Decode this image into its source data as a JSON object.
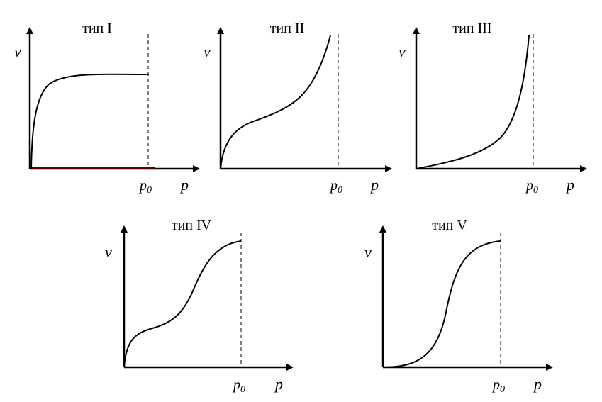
{
  "panels": [
    {
      "title": "тип I",
      "y_label": "v",
      "x_label": "p",
      "marker_label": "p",
      "marker_subscript": "0"
    },
    {
      "title": "тип II",
      "y_label": "v",
      "x_label": "p",
      "marker_label": "p",
      "marker_subscript": "0"
    },
    {
      "title": "тип III",
      "y_label": "v",
      "x_label": "p",
      "marker_label": "p",
      "marker_subscript": "0"
    },
    {
      "title": "тип IV",
      "y_label": "v",
      "x_label": "p",
      "marker_label": "p",
      "marker_subscript": "0"
    },
    {
      "title": "тип V",
      "y_label": "v",
      "x_label": "p",
      "marker_label": "p",
      "marker_subscript": "0"
    }
  ],
  "colors": {
    "ink": "#000000",
    "baseline_accent": "#5a0000",
    "background": "#ffffff"
  }
}
